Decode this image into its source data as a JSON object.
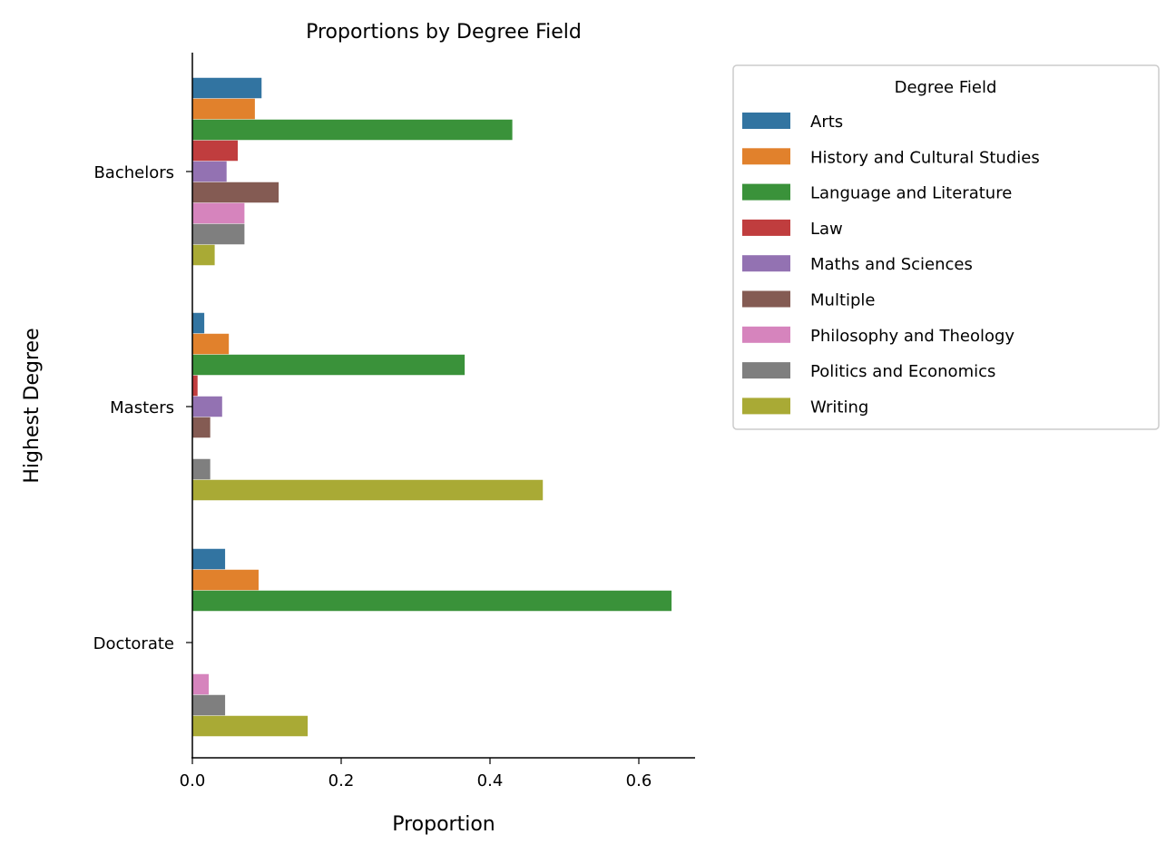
{
  "chart_data": {
    "type": "bar",
    "orientation": "horizontal",
    "title": "Proportions by Degree Field",
    "xlabel": "Proportion",
    "ylabel": "Highest Degree",
    "xlim": [
      0,
      0.675
    ],
    "xticks": [
      "0.0",
      "0.2",
      "0.4",
      "0.6"
    ],
    "xtick_values": [
      0,
      0.2,
      0.4,
      0.6
    ],
    "categories": [
      "Bachelors",
      "Masters",
      "Doctorate"
    ],
    "legend": {
      "title": "Degree Field",
      "placement": "outside-top-right"
    },
    "series": [
      {
        "name": "Arts",
        "color": "#3274a1",
        "values": [
          0.093,
          0.016,
          0.044
        ]
      },
      {
        "name": "History and Cultural Studies",
        "color": "#e1812c",
        "values": [
          0.084,
          0.049,
          0.089
        ]
      },
      {
        "name": "Language and Literature",
        "color": "#3a923a",
        "values": [
          0.43,
          0.366,
          0.644
        ]
      },
      {
        "name": "Law",
        "color": "#c03d3e",
        "values": [
          0.061,
          0.007,
          0
        ]
      },
      {
        "name": "Maths and Sciences",
        "color": "#9372b2",
        "values": [
          0.046,
          0.04,
          0
        ]
      },
      {
        "name": "Multiple",
        "color": "#845b53",
        "values": [
          0.116,
          0.024,
          0
        ]
      },
      {
        "name": "Philosophy and Theology",
        "color": "#d684bd",
        "values": [
          0.07,
          0,
          0.022
        ]
      },
      {
        "name": "Politics and Economics",
        "color": "#7f7f7f",
        "values": [
          0.07,
          0.024,
          0.044
        ]
      },
      {
        "name": "Writing",
        "color": "#a9aa35",
        "values": [
          0.03,
          0.471,
          0.155
        ]
      }
    ]
  }
}
